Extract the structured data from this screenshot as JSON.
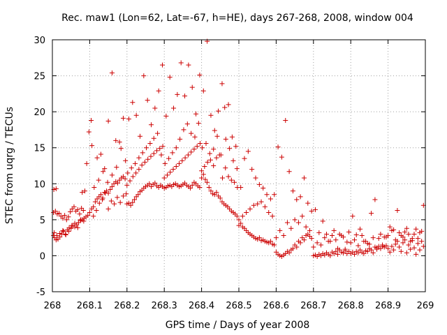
{
  "chart_data": {
    "type": "scatter",
    "title": "Rec. maw1 (Lon=62, Lat=-67, h=HE), days 267-268, 2008, window 004",
    "xlabel": "GPS time / Days of year 2008",
    "ylabel": "STEC from uqrg / TECUs",
    "xlim": [
      268,
      269
    ],
    "ylim": [
      -5,
      30
    ],
    "xticks": [
      268,
      268.1,
      268.2,
      268.3,
      268.4,
      268.5,
      268.6,
      268.7,
      268.8,
      268.9,
      269
    ],
    "xtick_labels": [
      "268",
      "268.1",
      "268.2",
      "268.3",
      "268.4",
      "268.5",
      "268.6",
      "268.7",
      "268.8",
      "268.9",
      "269"
    ],
    "yticks": [
      -5,
      0,
      5,
      10,
      15,
      20,
      25,
      30
    ],
    "ytick_labels": [
      "-5",
      "0",
      "5",
      "10",
      "15",
      "20",
      "25",
      "30"
    ],
    "grid": true,
    "marker": "+",
    "color": "#cc0000",
    "series": [
      {
        "name": "STEC",
        "x": [
          268.003,
          268.006,
          268.01,
          268.015,
          268.02,
          268.025,
          268.03,
          268.035,
          268.04,
          268.045,
          268.05,
          268.055,
          268.06,
          268.065,
          268.07,
          268.075,
          268.08,
          268.085,
          268.09,
          268.095,
          268.003,
          268.008,
          268.013,
          268.018,
          268.023,
          268.028,
          268.033,
          268.038,
          268.043,
          268.048,
          268.053,
          268.058,
          268.063,
          268.068,
          268.073,
          268.078,
          268.083,
          268.005,
          268.012,
          268.02,
          268.028,
          268.036,
          268.044,
          268.052,
          268.06,
          268.068,
          268.076,
          268.084,
          268.004,
          268.01,
          268.08,
          268.087,
          268.092,
          268.098,
          268.104,
          268.106,
          268.1,
          268.105,
          268.11,
          268.115,
          268.12,
          268.125,
          268.13,
          268.135,
          268.14,
          268.145,
          268.15,
          268.155,
          268.16,
          268.165,
          268.17,
          268.175,
          268.18,
          268.185,
          268.19,
          268.195,
          268.11,
          268.118,
          268.126,
          268.134,
          268.142,
          268.15,
          268.158,
          268.166,
          268.174,
          268.182,
          268.19,
          268.198,
          268.112,
          268.124,
          268.136,
          268.148,
          268.16,
          268.172,
          268.184,
          268.196,
          268.12,
          268.13,
          268.14,
          268.15,
          268.16,
          268.17,
          268.18,
          268.19,
          268.2,
          268.205,
          268.21,
          268.215,
          268.22,
          268.225,
          268.23,
          268.235,
          268.24,
          268.245,
          268.25,
          268.255,
          268.26,
          268.265,
          268.27,
          268.275,
          268.28,
          268.285,
          268.29,
          268.295,
          268.2,
          268.208,
          268.216,
          268.224,
          268.232,
          268.24,
          268.248,
          268.256,
          268.264,
          268.272,
          268.28,
          268.288,
          268.296,
          268.202,
          268.212,
          268.222,
          268.232,
          268.242,
          268.252,
          268.262,
          268.272,
          268.282,
          268.292,
          268.205,
          268.215,
          268.225,
          268.235,
          268.245,
          268.255,
          268.265,
          268.275,
          268.285,
          268.295,
          268.3,
          268.305,
          268.31,
          268.315,
          268.32,
          268.325,
          268.33,
          268.335,
          268.34,
          268.345,
          268.35,
          268.355,
          268.36,
          268.365,
          268.37,
          268.375,
          268.38,
          268.385,
          268.39,
          268.395,
          268.3,
          268.308,
          268.316,
          268.324,
          268.332,
          268.34,
          268.348,
          268.356,
          268.364,
          268.372,
          268.38,
          268.388,
          268.396,
          268.302,
          268.312,
          268.322,
          268.332,
          268.342,
          268.352,
          268.362,
          268.372,
          268.382,
          268.392,
          268.305,
          268.315,
          268.325,
          268.335,
          268.345,
          268.355,
          268.365,
          268.375,
          268.385,
          268.395,
          268.4,
          268.405,
          268.41,
          268.415,
          268.42,
          268.425,
          268.43,
          268.435,
          268.44,
          268.445,
          268.45,
          268.455,
          268.46,
          268.465,
          268.47,
          268.475,
          268.48,
          268.485,
          268.49,
          268.495,
          268.4,
          268.408,
          268.416,
          268.424,
          268.432,
          268.44,
          268.448,
          268.456,
          268.464,
          268.472,
          268.48,
          268.488,
          268.496,
          268.402,
          268.412,
          268.422,
          268.432,
          268.442,
          268.452,
          268.462,
          268.472,
          268.482,
          268.492,
          268.405,
          268.415,
          268.425,
          268.435,
          268.445,
          268.455,
          268.465,
          268.475,
          268.485,
          268.495,
          268.5,
          268.505,
          268.51,
          268.515,
          268.52,
          268.525,
          268.53,
          268.535,
          268.54,
          268.545,
          268.55,
          268.555,
          268.56,
          268.565,
          268.57,
          268.575,
          268.58,
          268.585,
          268.59,
          268.595,
          268.5,
          268.51,
          268.52,
          268.53,
          268.54,
          268.55,
          268.56,
          268.57,
          268.58,
          268.59,
          268.505,
          268.515,
          268.525,
          268.535,
          268.545,
          268.555,
          268.565,
          268.575,
          268.585,
          268.595,
          268.6,
          268.605,
          268.61,
          268.615,
          268.62,
          268.625,
          268.63,
          268.635,
          268.64,
          268.645,
          268.65,
          268.655,
          268.66,
          268.665,
          268.67,
          268.675,
          268.68,
          268.685,
          268.69,
          268.695,
          268.6,
          268.61,
          268.62,
          268.63,
          268.64,
          268.65,
          268.66,
          268.67,
          268.68,
          268.69,
          268.605,
          268.615,
          268.625,
          268.635,
          268.645,
          268.655,
          268.665,
          268.675,
          268.685,
          268.695,
          268.7,
          268.705,
          268.71,
          268.715,
          268.72,
          268.725,
          268.73,
          268.735,
          268.74,
          268.745,
          268.75,
          268.755,
          268.76,
          268.765,
          268.77,
          268.775,
          268.78,
          268.785,
          268.79,
          268.795,
          268.7,
          268.71,
          268.72,
          268.73,
          268.74,
          268.75,
          268.76,
          268.77,
          268.78,
          268.79,
          268.705,
          268.715,
          268.725,
          268.735,
          268.745,
          268.755,
          268.765,
          268.775,
          268.785,
          268.795,
          268.8,
          268.805,
          268.81,
          268.815,
          268.82,
          268.825,
          268.83,
          268.835,
          268.84,
          268.845,
          268.85,
          268.855,
          268.86,
          268.865,
          268.87,
          268.875,
          268.88,
          268.885,
          268.89,
          268.895,
          268.8,
          268.81,
          268.82,
          268.83,
          268.84,
          268.85,
          268.86,
          268.87,
          268.88,
          268.89,
          268.805,
          268.815,
          268.825,
          268.835,
          268.845,
          268.855,
          268.865,
          268.875,
          268.885,
          268.895,
          268.9,
          268.905,
          268.91,
          268.915,
          268.92,
          268.925,
          268.93,
          268.935,
          268.94,
          268.945,
          268.95,
          268.955,
          268.96,
          268.965,
          268.97,
          268.975,
          268.98,
          268.985,
          268.99,
          268.995,
          268.9,
          268.91,
          268.92,
          268.93,
          268.94,
          268.95,
          268.96,
          268.97,
          268.98,
          268.99,
          268.905,
          268.915,
          268.925,
          268.935,
          268.945,
          268.955,
          268.965,
          268.975,
          268.985,
          268.995
        ],
        "y": [
          2.8,
          2.5,
          2.2,
          2.3,
          2.6,
          3.0,
          3.4,
          3.0,
          3.6,
          3.9,
          3.8,
          4.2,
          4.0,
          4.3,
          4.6,
          4.9,
          5.0,
          5.2,
          5.4,
          5.6,
          6.0,
          6.2,
          5.8,
          5.9,
          5.5,
          5.2,
          5.6,
          5.0,
          5.4,
          6.1,
          6.5,
          6.8,
          6.2,
          6.4,
          5.8,
          6.6,
          6.3,
          3.2,
          2.8,
          3.1,
          3.5,
          2.9,
          3.4,
          4.2,
          4.5,
          3.9,
          5.0,
          4.8,
          9.2,
          9.3,
          8.8,
          9.0,
          12.8,
          17.2,
          18.8,
          15.3,
          6.0,
          6.5,
          6.8,
          7.5,
          7.9,
          8.2,
          8.5,
          8.0,
          8.8,
          9.0,
          8.7,
          9.2,
          9.6,
          10.0,
          10.3,
          10.1,
          10.5,
          10.8,
          11.0,
          10.7,
          5.5,
          6.3,
          7.3,
          7.8,
          8.7,
          6.5,
          7.6,
          7.2,
          8.1,
          7.4,
          8.3,
          8.6,
          9.5,
          10.5,
          11.7,
          10.2,
          11.2,
          12.3,
          14.9,
          13.2,
          13.6,
          14.1,
          12.1,
          18.7,
          25.4,
          16.0,
          15.8,
          19.1,
          7.2,
          7.3,
          7.0,
          7.4,
          7.8,
          8.2,
          8.5,
          8.9,
          9.1,
          9.4,
          9.6,
          9.8,
          10.0,
          9.6,
          9.9,
          10.1,
          9.7,
          9.5,
          9.8,
          9.6,
          9.8,
          10.4,
          11.0,
          11.5,
          12.0,
          12.6,
          13.0,
          13.4,
          13.8,
          14.2,
          14.6,
          14.9,
          15.2,
          11.5,
          12.2,
          12.8,
          13.6,
          14.3,
          15.0,
          15.6,
          16.3,
          17.0,
          14.0,
          19.0,
          21.3,
          19.5,
          16.6,
          25.0,
          21.6,
          18.2,
          20.5,
          22.9,
          26.5,
          9.4,
          9.5,
          9.7,
          9.8,
          9.6,
          9.9,
          10.0,
          9.8,
          9.6,
          9.7,
          9.9,
          10.1,
          9.8,
          9.6,
          9.4,
          9.8,
          10.2,
          10.0,
          9.7,
          9.5,
          10.8,
          11.2,
          11.6,
          12.0,
          12.4,
          12.8,
          13.2,
          13.6,
          14.0,
          14.4,
          14.8,
          15.2,
          15.6,
          12.8,
          13.5,
          14.3,
          15.0,
          16.2,
          17.5,
          18.3,
          17.0,
          16.5,
          18.4,
          19.4,
          24.8,
          20.5,
          22.4,
          26.8,
          22.2,
          26.5,
          23.4,
          19.7,
          25.1,
          10.8,
          11.3,
          10.6,
          10.2,
          9.5,
          9.0,
          8.6,
          8.5,
          8.8,
          8.3,
          8.0,
          7.5,
          7.2,
          7.0,
          6.8,
          6.5,
          6.2,
          6.0,
          5.8,
          5.5,
          11.8,
          12.4,
          13.0,
          13.3,
          14.8,
          13.6,
          14.0,
          10.8,
          12.2,
          11.0,
          10.5,
          10.2,
          9.5,
          15.0,
          15.6,
          14.2,
          12.5,
          16.6,
          14.0,
          20.6,
          21.0,
          16.5,
          15.2,
          22.9,
          29.8,
          19.5,
          17.4,
          20.1,
          23.9,
          16.2,
          14.9,
          13.2,
          12.1,
          4.2,
          4.5,
          4.0,
          3.8,
          3.5,
          3.2,
          3.0,
          2.8,
          2.6,
          2.4,
          2.3,
          2.5,
          2.1,
          2.2,
          2.0,
          1.9,
          1.8,
          2.0,
          1.6,
          1.5,
          5.0,
          5.5,
          6.0,
          6.5,
          7.0,
          7.2,
          7.5,
          6.8,
          6.0,
          5.5,
          9.5,
          13.5,
          14.5,
          12.0,
          10.8,
          9.9,
          9.4,
          8.5,
          7.9,
          8.5,
          0.5,
          0.2,
          0.0,
          -0.1,
          0.1,
          0.3,
          0.6,
          0.4,
          0.8,
          1.0,
          1.5,
          1.2,
          2.0,
          1.8,
          2.5,
          2.2,
          2.8,
          3.0,
          2.7,
          2.4,
          2.5,
          3.5,
          2.8,
          4.6,
          3.8,
          5.0,
          4.6,
          5.5,
          4.0,
          3.5,
          15.1,
          13.7,
          18.8,
          11.7,
          9.0,
          7.8,
          8.2,
          10.8,
          7.3,
          6.2,
          0.0,
          0.1,
          -0.1,
          0.2,
          0.0,
          0.3,
          0.1,
          0.4,
          0.2,
          0.0,
          0.5,
          0.3,
          0.6,
          0.2,
          0.8,
          0.5,
          0.4,
          0.7,
          0.3,
          0.6,
          1.2,
          1.8,
          1.5,
          2.5,
          2.0,
          2.8,
          2.2,
          3.0,
          2.6,
          1.9,
          6.4,
          3.2,
          4.8,
          3.0,
          2.0,
          3.5,
          1.0,
          2.8,
          0.9,
          3.3,
          0.3,
          0.5,
          0.2,
          0.6,
          0.4,
          0.8,
          0.5,
          0.3,
          0.7,
          0.6,
          1.0,
          0.8,
          0.4,
          1.2,
          0.9,
          1.3,
          1.0,
          1.5,
          1.2,
          1.4,
          1.8,
          2.2,
          1.4,
          2.8,
          2.0,
          1.6,
          2.5,
          1.1,
          3.0,
          2.6,
          5.5,
          2.9,
          3.7,
          2.0,
          1.7,
          5.9,
          7.8,
          2.4,
          1.3,
          2.6,
          1.0,
          0.5,
          1.3,
          0.8,
          1.6,
          2.0,
          1.2,
          0.6,
          1.8,
          2.2,
          0.4,
          1.5,
          0.9,
          2.4,
          1.1,
          0.2,
          1.7,
          0.8,
          2.0,
          1.3,
          2.8,
          3.5,
          2.2,
          3.2,
          2.6,
          3.8,
          2.0,
          3.0,
          2.4,
          3.4,
          4.0,
          3.6,
          6.3,
          2.8,
          3.3,
          3.0,
          2.1,
          3.7,
          3.2,
          7.0
        ]
      }
    ]
  }
}
